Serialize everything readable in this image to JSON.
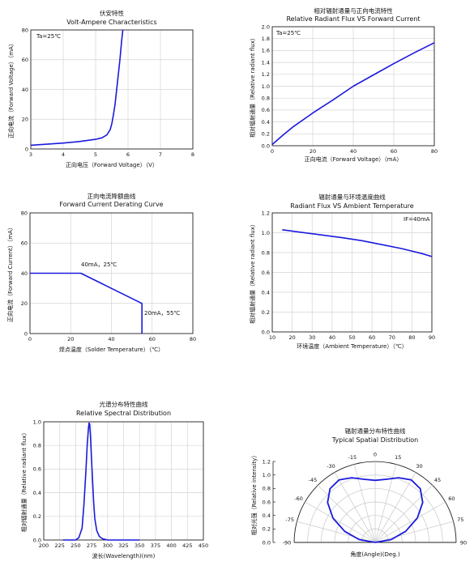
{
  "chart_data": [
    {
      "type": "line",
      "title_cn": "伏安特性",
      "title": "Volt-Ampere Characteristics",
      "xlabel": "正向电压（Forward Voltage）（V）",
      "ylabel": "正向电流（Forward Voltage）（mA）",
      "annotation": "Ta=25℃",
      "xlim": [
        3,
        8
      ],
      "ylim": [
        0,
        80
      ],
      "xticks": [
        "3",
        "4",
        "5",
        "6",
        "7",
        "8"
      ],
      "yticks": [
        "0",
        "20",
        "40",
        "60",
        "80"
      ],
      "grid": true,
      "color": "#1a1adc",
      "x": [
        3.0,
        3.5,
        4.0,
        4.5,
        5.0,
        5.2,
        5.35,
        5.45,
        5.5,
        5.55,
        5.6,
        5.65,
        5.7,
        5.75,
        5.8,
        5.84
      ],
      "y": [
        2.5,
        3.2,
        4.0,
        5.0,
        6.5,
        7.5,
        9.5,
        13,
        17,
        23,
        30,
        40,
        50,
        60,
        72,
        80
      ]
    },
    {
      "type": "line",
      "title_cn": "相对辐射通量与正向电流特性",
      "title": "Relative Radiant Flux VS Forward Current",
      "xlabel": "正向电流（Forward Voltage）（mA）",
      "ylabel": "相对辐射通量（Relative radiant flux）",
      "annotation": "Ta=25℃",
      "xlim": [
        0,
        80
      ],
      "ylim": [
        0,
        2.0
      ],
      "xticks": [
        "0",
        "20",
        "40",
        "60",
        "80"
      ],
      "yticks": [
        "0.0",
        "0.2",
        "0.4",
        "0.6",
        "0.8",
        "1.0",
        "1.2",
        "1.4",
        "1.6",
        "1.8",
        "2.0"
      ],
      "grid": true,
      "color": "#1a1adc",
      "x": [
        0,
        5,
        10,
        20,
        30,
        40,
        50,
        60,
        70,
        80
      ],
      "y": [
        0.02,
        0.17,
        0.31,
        0.55,
        0.77,
        1.0,
        1.19,
        1.38,
        1.56,
        1.73
      ]
    },
    {
      "type": "line",
      "title_cn": "正向电流降额曲线",
      "title": "Forward Current Derating Curve",
      "xlabel": "焊点温度（Solder Temperature）（℃）",
      "ylabel": "正向电流（Forward Current）（mA）",
      "xlim": [
        0,
        80
      ],
      "ylim": [
        0,
        80
      ],
      "xticks": [
        "0",
        "20",
        "40",
        "60",
        "80"
      ],
      "yticks": [
        "0",
        "20",
        "40",
        "60",
        "80"
      ],
      "grid": true,
      "color": "#1a1adc",
      "x": [
        0,
        25,
        55,
        55
      ],
      "y": [
        40,
        40,
        20,
        0
      ],
      "annotations": [
        "40mA，25℃",
        "20mA，55℃"
      ]
    },
    {
      "type": "line",
      "title_cn": "辐射通量与环境温度曲线",
      "title": "Radiant Flux VS Ambient Temperature",
      "xlabel": "环境温度（Ambient Temperature）（℃）",
      "ylabel": "相对辐射通量（Relative radiant flux）",
      "annotation": "IF=40mA",
      "xlim": [
        10,
        90
      ],
      "ylim": [
        0,
        1.2
      ],
      "xticks": [
        "10",
        "20",
        "30",
        "40",
        "50",
        "60",
        "70",
        "80",
        "90"
      ],
      "yticks": [
        "0.0",
        "0.2",
        "0.4",
        "0.6",
        "0.8",
        "1.0",
        "1.2"
      ],
      "grid": true,
      "color": "#1a1adc",
      "x": [
        15,
        30,
        45,
        55,
        65,
        75,
        85,
        90
      ],
      "y": [
        1.03,
        0.99,
        0.95,
        0.92,
        0.88,
        0.84,
        0.79,
        0.76
      ]
    },
    {
      "type": "line",
      "title_cn": "光谱分布特性曲线",
      "title": "Relative Spectral Distribution",
      "xlabel": "波长(Wavelength)(nm)",
      "ylabel": "相对辐射通量（Relative radiant flux）",
      "xlim": [
        200,
        450
      ],
      "ylim": [
        0,
        1.0
      ],
      "xticks": [
        "200",
        "225",
        "250",
        "275",
        "300",
        "325",
        "350",
        "375",
        "400",
        "425",
        "450"
      ],
      "yticks": [
        "0.0",
        "0.2",
        "0.4",
        "0.6",
        "0.8",
        "1.0"
      ],
      "grid": true,
      "color": "#1a1adc",
      "x": [
        230,
        250,
        255,
        260,
        263,
        266,
        268,
        270,
        271,
        272,
        273,
        274,
        276,
        278,
        280,
        283,
        287,
        292,
        300,
        320,
        350
      ],
      "y": [
        0,
        0,
        0.02,
        0.1,
        0.3,
        0.58,
        0.8,
        0.95,
        0.99,
        0.98,
        0.9,
        0.78,
        0.55,
        0.33,
        0.18,
        0.08,
        0.03,
        0.01,
        0,
        0,
        0
      ]
    },
    {
      "type": "polar",
      "title_cn": "辐射通量分布特性曲线",
      "title": "Typical Spatial Distribution",
      "xlabel": "角度(Angle)(Deg.)",
      "ylabel": "相对光强（Relative intensity）",
      "rticks": [
        "0.0",
        "0.2",
        "0.4",
        "0.6",
        "0.8",
        "1.0",
        "1.2"
      ],
      "angle_labels": [
        "-90",
        "-75",
        "-60",
        "-45",
        "-30",
        "-15",
        "0",
        "15",
        "30",
        "45",
        "60",
        "75",
        "90"
      ],
      "color": "#1a1adc",
      "angles": [
        -90,
        -80,
        -70,
        -60,
        -50,
        -40,
        -30,
        -20,
        -10,
        0,
        10,
        20,
        30,
        40,
        50,
        60,
        70,
        80,
        90
      ],
      "values": [
        0,
        0.24,
        0.48,
        0.72,
        0.92,
        1.04,
        1.07,
        1.02,
        0.95,
        0.92,
        0.95,
        1.02,
        1.07,
        1.04,
        0.92,
        0.72,
        0.48,
        0.24,
        0
      ]
    }
  ]
}
